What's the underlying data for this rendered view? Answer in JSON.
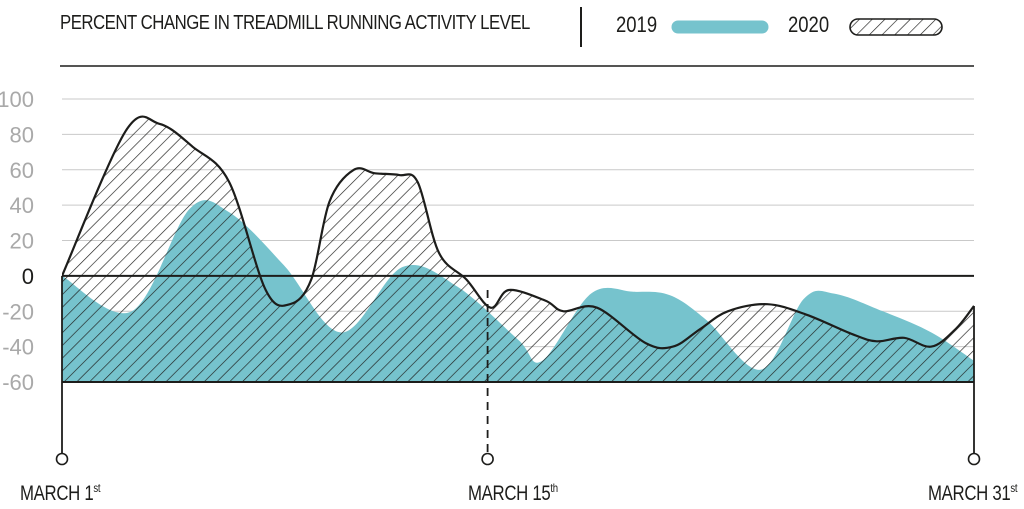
{
  "chart_data": {
    "type": "area",
    "title": "PERCENT CHANGE IN TREADMILL RUNNING ACTIVITY LEVEL",
    "ylim": [
      -60,
      100
    ],
    "yticks": [
      "100",
      "80",
      "60",
      "40",
      "20",
      "0",
      "-20",
      "-40",
      "-60"
    ],
    "ytick_values": [
      100,
      80,
      60,
      40,
      20,
      0,
      -20,
      -40,
      -60
    ],
    "grid": true,
    "legend_position": "top-right",
    "x_range": [
      1,
      31
    ],
    "x_labels": [
      {
        "main": "MARCH 1",
        "sup": "st",
        "day": 1
      },
      {
        "main": "MARCH 15",
        "sup": "th",
        "day": 15
      },
      {
        "main": "MARCH 31",
        "sup": "st",
        "day": 31
      }
    ],
    "series": [
      {
        "name": "2019",
        "color": "#76c3cd",
        "points": [
          [
            1,
            0
          ],
          [
            3.3,
            -20
          ],
          [
            5.2,
            38
          ],
          [
            6.5,
            36
          ],
          [
            8.3,
            6
          ],
          [
            10.2,
            -32
          ],
          [
            12.2,
            5
          ],
          [
            14,
            -6
          ],
          [
            16,
            -36
          ],
          [
            16.8,
            -48
          ],
          [
            18.4,
            -10
          ],
          [
            19.8,
            -9
          ],
          [
            21,
            -11
          ],
          [
            22.2,
            -25
          ],
          [
            24,
            -53
          ],
          [
            25.4,
            -13
          ],
          [
            26.4,
            -10
          ],
          [
            28,
            -20
          ],
          [
            29.6,
            -32
          ],
          [
            31,
            -48
          ]
        ]
      },
      {
        "name": "2020",
        "pattern": "hatched",
        "points": [
          [
            1,
            0
          ],
          [
            3.1,
            82
          ],
          [
            4.2,
            86
          ],
          [
            5.3,
            73
          ],
          [
            6.5,
            53
          ],
          [
            7.7,
            -8
          ],
          [
            8.5,
            -16
          ],
          [
            9.2,
            -2
          ],
          [
            9.8,
            42
          ],
          [
            10.6,
            60
          ],
          [
            11.3,
            58
          ],
          [
            12.1,
            57
          ],
          [
            12.7,
            53
          ],
          [
            13.4,
            13
          ],
          [
            14.3,
            -2
          ],
          [
            15.1,
            -18
          ],
          [
            15.7,
            -8
          ],
          [
            16.9,
            -14
          ],
          [
            17.5,
            -20
          ],
          [
            18.6,
            -18
          ],
          [
            20.2,
            -38
          ],
          [
            21.1,
            -40
          ],
          [
            22,
            -30
          ],
          [
            22.9,
            -20
          ],
          [
            24.2,
            -16
          ],
          [
            25.5,
            -22
          ],
          [
            27,
            -33
          ],
          [
            27.8,
            -37
          ],
          [
            28.7,
            -35
          ],
          [
            29.6,
            -40
          ],
          [
            30.4,
            -30
          ],
          [
            31,
            -17
          ]
        ]
      }
    ],
    "annotations": [
      {
        "type": "dashed-marker",
        "day": 15,
        "value": -8
      }
    ]
  }
}
